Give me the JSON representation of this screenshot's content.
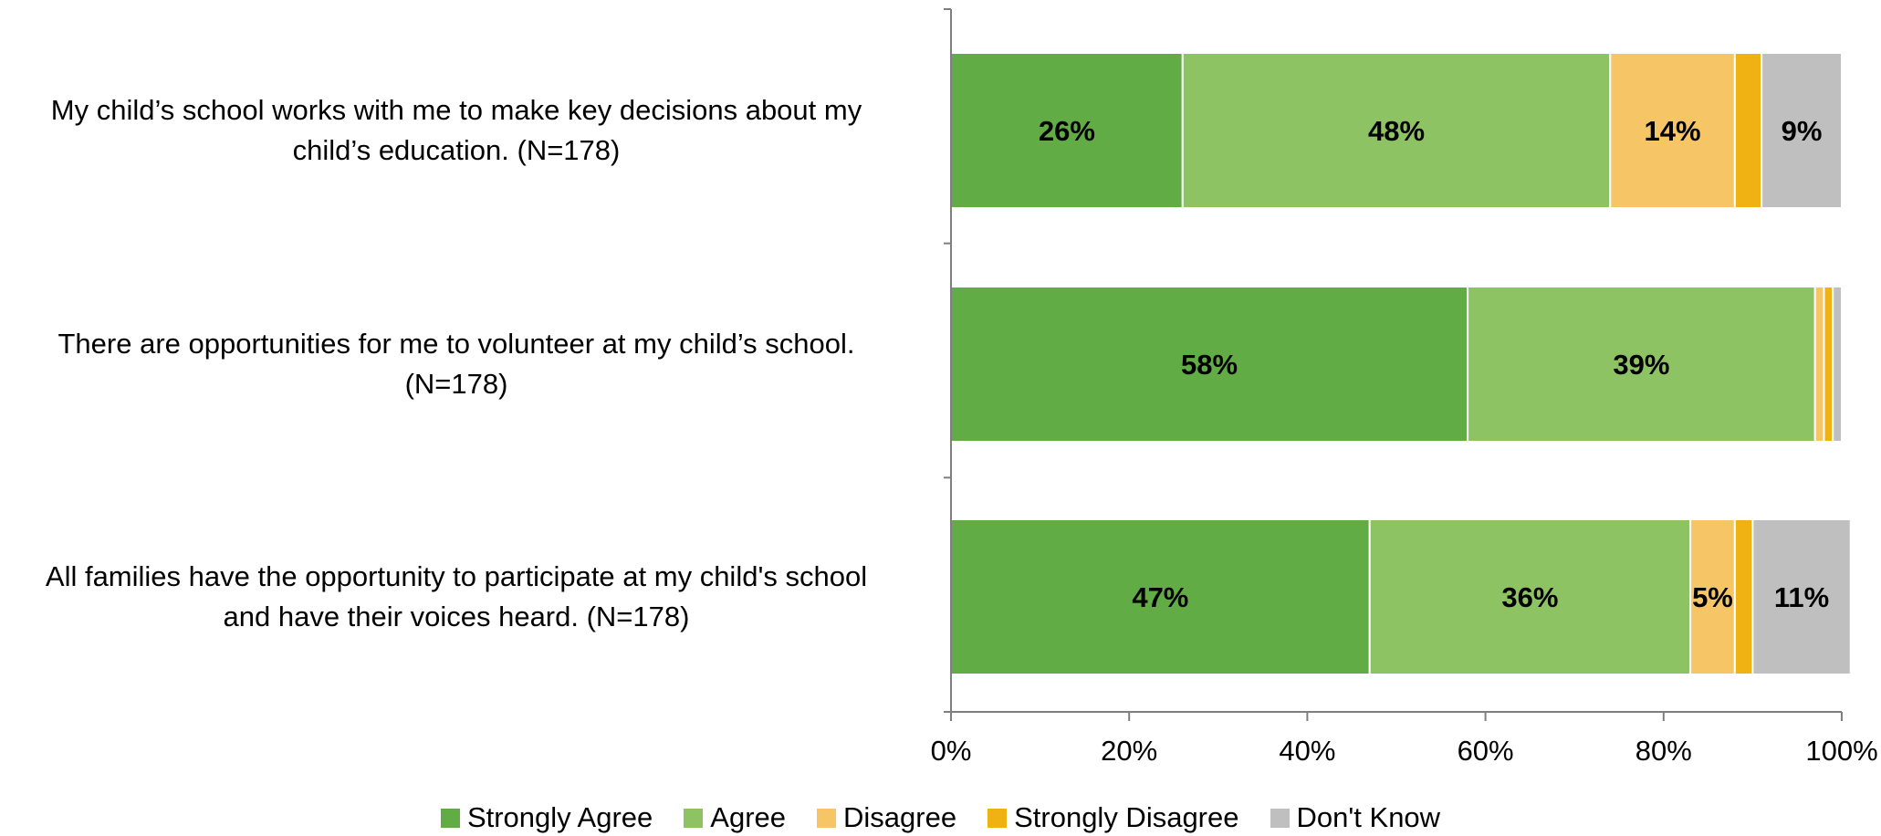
{
  "chart_data": {
    "type": "bar",
    "orientation": "horizontal",
    "stacked": true,
    "categories": [
      "My child’s school works with me to make key decisions about my child’s education. (N=178)",
      "There are opportunities for me to volunteer at my child’s school. (N=178)",
      "All families have the opportunity to participate at my child's school and have their voices heard. (N=178)"
    ],
    "category_lines": [
      [
        "My child’s school works with me to make key decisions about my",
        "child’s education. (N=178)"
      ],
      [
        "There are opportunities for me to volunteer at my child’s school.",
        "(N=178)"
      ],
      [
        "All families have the opportunity to participate at my child's school",
        "and have their voices heard. (N=178)"
      ]
    ],
    "series": [
      {
        "name": "Strongly Agree",
        "color": "#62AC46",
        "values": [
          26,
          58,
          47
        ],
        "labels": [
          "26%",
          "58%",
          "47%"
        ]
      },
      {
        "name": "Agree",
        "color": "#8DC363",
        "values": [
          48,
          39,
          36
        ],
        "labels": [
          "48%",
          "39%",
          "36%"
        ]
      },
      {
        "name": "Disagree",
        "color": "#F6C565",
        "values": [
          14,
          1,
          5
        ],
        "labels": [
          "14%",
          "",
          "5%"
        ]
      },
      {
        "name": "Strongly Disagree",
        "color": "#F0B212",
        "values": [
          3,
          1,
          2
        ],
        "labels": [
          "",
          "",
          ""
        ]
      },
      {
        "name": "Don't Know",
        "color": "#BFBFBF",
        "values": [
          9,
          1,
          11
        ],
        "labels": [
          "9%",
          "",
          "11%"
        ]
      }
    ],
    "xlim": [
      0,
      100
    ],
    "xticks": [
      "0%",
      "20%",
      "40%",
      "60%",
      "80%",
      "100%"
    ],
    "grid": false,
    "legend_position": "bottom"
  }
}
